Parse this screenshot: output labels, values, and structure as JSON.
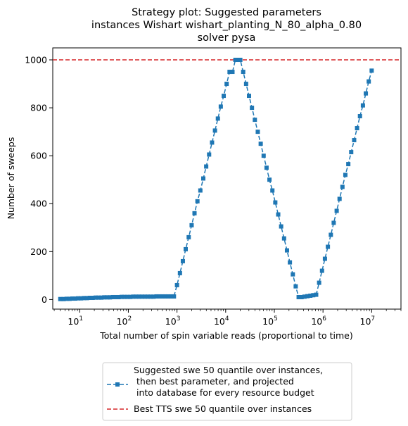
{
  "chart_data": {
    "type": "line",
    "title": [
      "Strategy plot: Suggested parameters",
      "instances Wishart wishart_planting_N_80_alpha_0.80",
      "solver pysa"
    ],
    "xlabel": "Total number of spin variable reads (proportional to time)",
    "ylabel": "Number of sweeps",
    "xscale": "log",
    "xlim": [
      2.8,
      40000000
    ],
    "ylim": [
      -40,
      1050
    ],
    "x_ticks": [
      {
        "value": 10,
        "base": "10",
        "exp": "1"
      },
      {
        "value": 100,
        "base": "10",
        "exp": "2"
      },
      {
        "value": 1000,
        "base": "10",
        "exp": "3"
      },
      {
        "value": 10000,
        "base": "10",
        "exp": "4"
      },
      {
        "value": 100000,
        "base": "10",
        "exp": "5"
      },
      {
        "value": 1000000,
        "base": "10",
        "exp": "6"
      },
      {
        "value": 10000000,
        "base": "10",
        "exp": "7"
      }
    ],
    "y_ticks": [
      0,
      200,
      400,
      600,
      800,
      1000
    ],
    "grid": false,
    "legend_placement": "below-center",
    "series": [
      {
        "name": "Suggested swe 50 quantile over instances,\n then best parameter, and projected\n into database for every resource budget",
        "color": "#1f77b4",
        "marker": "square",
        "linestyle": "dashed",
        "points": [
          [
            4,
            2
          ],
          [
            4.7,
            2
          ],
          [
            5.4,
            3
          ],
          [
            6.2,
            3
          ],
          [
            7.1,
            4
          ],
          [
            8.1,
            4
          ],
          [
            9.3,
            5
          ],
          [
            10.7,
            5
          ],
          [
            12.3,
            6
          ],
          [
            14.1,
            6
          ],
          [
            16.2,
            7
          ],
          [
            18.5,
            7
          ],
          [
            21.3,
            8
          ],
          [
            24.4,
            8
          ],
          [
            28,
            8
          ],
          [
            32,
            9
          ],
          [
            37,
            9
          ],
          [
            42,
            9
          ],
          [
            48,
            10
          ],
          [
            55,
            10
          ],
          [
            63,
            10
          ],
          [
            73,
            11
          ],
          [
            83,
            11
          ],
          [
            96,
            11
          ],
          [
            110,
            11
          ],
          [
            126,
            12
          ],
          [
            145,
            12
          ],
          [
            166,
            12
          ],
          [
            190,
            12
          ],
          [
            219,
            12
          ],
          [
            251,
            12
          ],
          [
            288,
            12
          ],
          [
            330,
            12
          ],
          [
            379,
            13
          ],
          [
            435,
            13
          ],
          [
            500,
            13
          ],
          [
            573,
            13
          ],
          [
            658,
            13
          ],
          [
            755,
            13
          ],
          [
            866,
            13
          ],
          [
            1000,
            60
          ],
          [
            1150,
            110
          ],
          [
            1320,
            160
          ],
          [
            1510,
            210
          ],
          [
            1740,
            260
          ],
          [
            2000,
            310
          ],
          [
            2290,
            360
          ],
          [
            2630,
            410
          ],
          [
            3020,
            455
          ],
          [
            3470,
            505
          ],
          [
            3980,
            555
          ],
          [
            4570,
            605
          ],
          [
            5250,
            655
          ],
          [
            6030,
            705
          ],
          [
            6920,
            755
          ],
          [
            7940,
            805
          ],
          [
            9120,
            850
          ],
          [
            10470,
            900
          ],
          [
            12020,
            950
          ],
          [
            13800,
            950
          ],
          [
            15850,
            1000
          ],
          [
            18200,
            1000
          ],
          [
            20000,
            1000
          ],
          [
            22900,
            950
          ],
          [
            26300,
            900
          ],
          [
            30200,
            850
          ],
          [
            34700,
            800
          ],
          [
            39800,
            750
          ],
          [
            45700,
            700
          ],
          [
            52500,
            650
          ],
          [
            60300,
            600
          ],
          [
            69200,
            550
          ],
          [
            79400,
            500
          ],
          [
            91200,
            455
          ],
          [
            104700,
            405
          ],
          [
            120200,
            355
          ],
          [
            138000,
            305
          ],
          [
            158500,
            255
          ],
          [
            182000,
            205
          ],
          [
            209000,
            155
          ],
          [
            240000,
            105
          ],
          [
            275000,
            55
          ],
          [
            316000,
            10
          ],
          [
            363000,
            10
          ],
          [
            417000,
            12
          ],
          [
            479000,
            14
          ],
          [
            550000,
            16
          ],
          [
            631000,
            18
          ],
          [
            724000,
            20
          ],
          [
            832000,
            70
          ],
          [
            955000,
            120
          ],
          [
            1096000,
            170
          ],
          [
            1260000,
            220
          ],
          [
            1450000,
            270
          ],
          [
            1660000,
            320
          ],
          [
            1910000,
            370
          ],
          [
            2190000,
            420
          ],
          [
            2510000,
            470
          ],
          [
            2880000,
            520
          ],
          [
            3310000,
            565
          ],
          [
            3800000,
            615
          ],
          [
            4370000,
            665
          ],
          [
            5010000,
            715
          ],
          [
            5750000,
            765
          ],
          [
            6610000,
            810
          ],
          [
            7590000,
            860
          ],
          [
            8710000,
            910
          ],
          [
            10000000,
            955
          ]
        ]
      },
      {
        "name": "Best TTS swe 50 quantile over instances",
        "color": "#d62728",
        "linestyle": "dashed",
        "hline": 1000
      }
    ]
  }
}
